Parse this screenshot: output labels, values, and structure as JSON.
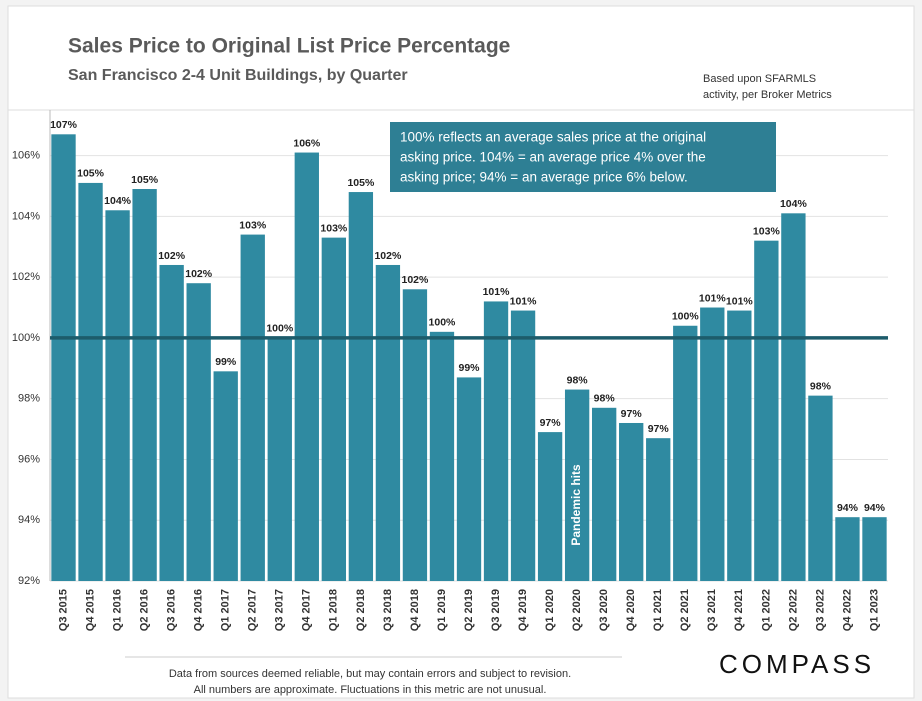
{
  "chart_data": {
    "type": "bar",
    "title": "Sales Price to Original List Price Percentage",
    "subtitle": "San Francisco 2-4 Unit Buildings, by Quarter",
    "source_note": [
      "Based upon SFARMLS",
      "activity, per Broker Metrics"
    ],
    "annotation": [
      "100% reflects an average sales price at the original",
      "asking price. 104% = an average price 4% over the",
      "asking price; 94% = an average price 6% below."
    ],
    "event_label": "Pandemic hits",
    "footer": [
      "Data from sources deemed reliable, but may contain errors and subject to revision.",
      "All numbers are approximate. Fluctuations in this metric are not unusual."
    ],
    "brand": "COMPASS",
    "categories": [
      "Q3 2015",
      "Q4 2015",
      "Q1 2016",
      "Q2 2016",
      "Q3 2016",
      "Q4 2016",
      "Q1 2017",
      "Q2 2017",
      "Q3 2017",
      "Q4 2017",
      "Q1 2018",
      "Q2 2018",
      "Q3 2018",
      "Q4 2018",
      "Q1 2019",
      "Q2 2019",
      "Q3 2019",
      "Q4 2019",
      "Q1 2020",
      "Q2 2020",
      "Q3 2020",
      "Q4 2020",
      "Q1 2021",
      "Q2 2021",
      "Q3 2021",
      "Q4 2021",
      "Q1 2022",
      "Q2 2022",
      "Q3 2022",
      "Q4 2022",
      "Q1 2023"
    ],
    "values": [
      106.7,
      105.1,
      104.2,
      104.9,
      102.4,
      101.8,
      98.9,
      103.4,
      100.0,
      106.1,
      103.3,
      104.8,
      102.4,
      101.6,
      100.2,
      98.7,
      101.2,
      100.9,
      96.9,
      98.3,
      97.7,
      97.2,
      96.7,
      100.4,
      101.0,
      100.9,
      103.2,
      104.1,
      98.1,
      94.1,
      94.1
    ],
    "value_labels": [
      "107%",
      "105%",
      "104%",
      "105%",
      "102%",
      "102%",
      "99%",
      "103%",
      "100%",
      "106%",
      "103%",
      "105%",
      "102%",
      "102%",
      "100%",
      "99%",
      "101%",
      "101%",
      "97%",
      "98%",
      "98%",
      "97%",
      "97%",
      "100%",
      "101%",
      "101%",
      "103%",
      "104%",
      "98%",
      "94%",
      "94%"
    ],
    "color": "#2f8aa1",
    "reference_line": 100,
    "reference_color": "#1d5c6b",
    "ylim": [
      92,
      107.5
    ],
    "yticks": [
      {
        "value": 92,
        "label": "92%"
      },
      {
        "value": 94,
        "label": "94%"
      },
      {
        "value": 96,
        "label": "96%"
      },
      {
        "value": 98,
        "label": "98%"
      },
      {
        "value": 100,
        "label": "100%"
      },
      {
        "value": 102,
        "label": "102%"
      },
      {
        "value": 104,
        "label": "104%"
      },
      {
        "value": 106,
        "label": "106%"
      }
    ],
    "grid": true
  }
}
